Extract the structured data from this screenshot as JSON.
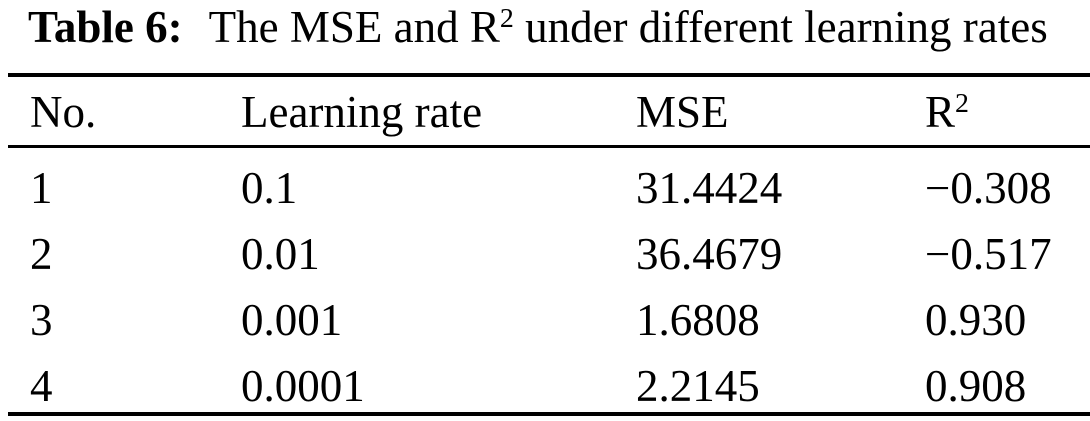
{
  "caption": {
    "label": "Table 6:",
    "before_sup": "The MSE and R",
    "sup": "2",
    "after_sup": " under different learning rates"
  },
  "table": {
    "columns": [
      {
        "label": "No."
      },
      {
        "label": "Learning rate"
      },
      {
        "label": "MSE"
      },
      {
        "label": "R",
        "sup": "2"
      }
    ],
    "rows": [
      {
        "no": "1",
        "learning_rate": "0.1",
        "mse": "31.4424",
        "r2": "−0.308"
      },
      {
        "no": "2",
        "learning_rate": "0.01",
        "mse": "36.4679",
        "r2": "−0.517"
      },
      {
        "no": "3",
        "learning_rate": "0.001",
        "mse": "1.6808",
        "r2": "0.930"
      },
      {
        "no": "4",
        "learning_rate": "0.0001",
        "mse": "2.2145",
        "r2": "0.908"
      }
    ]
  },
  "colors": {
    "text": "#000000",
    "background": "#ffffff",
    "rule": "#000000"
  }
}
